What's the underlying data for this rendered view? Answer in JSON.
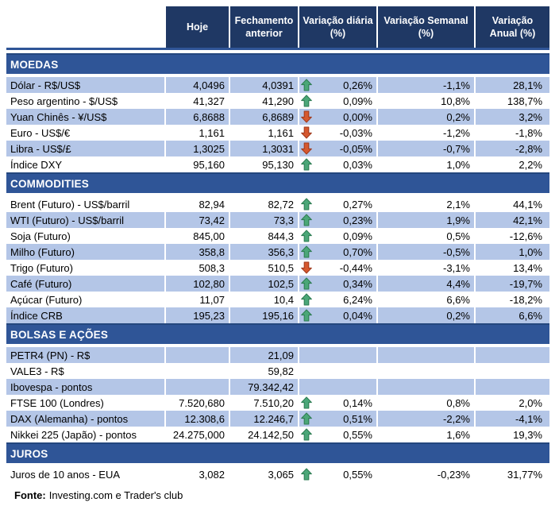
{
  "header": {
    "columns": [
      "Hoje",
      "Fechamento\nanterior",
      "Variação diária\n(%)",
      "Variação Semanal\n(%)",
      "Variação\nAnual (%)"
    ]
  },
  "sections": [
    {
      "title": "MOEDAS",
      "first_row_shaded": true,
      "rows": [
        {
          "label": "Dólar - R$/US$",
          "today": "4,0496",
          "previous_close": "4,0391",
          "direction": "up",
          "daily_change": "0,26%",
          "weekly_change": "-1,1%",
          "annual_change": "28,1%"
        },
        {
          "label": "Peso argentino - $/US$",
          "today": "41,327",
          "previous_close": "41,290",
          "direction": "up",
          "daily_change": "0,09%",
          "weekly_change": "10,8%",
          "annual_change": "138,7%"
        },
        {
          "label": "Yuan Chinês - ¥/US$",
          "today": "6,8688",
          "previous_close": "6,8689",
          "direction": "down",
          "daily_change": "0,00%",
          "weekly_change": "0,2%",
          "annual_change": "3,2%"
        },
        {
          "label": "Euro - US$/€",
          "today": "1,161",
          "previous_close": "1,161",
          "direction": "down",
          "daily_change": "-0,03%",
          "weekly_change": "-1,2%",
          "annual_change": "-1,8%"
        },
        {
          "label": "Libra - US$/£",
          "today": "1,3025",
          "previous_close": "1,3031",
          "direction": "down",
          "daily_change": "-0,05%",
          "weekly_change": "-0,7%",
          "annual_change": "-2,8%"
        },
        {
          "label": "Índice DXY",
          "today": "95,160",
          "previous_close": "95,130",
          "direction": "up",
          "daily_change": "0,03%",
          "weekly_change": "1,0%",
          "annual_change": "2,2%"
        }
      ]
    },
    {
      "title": "COMMODITIES",
      "first_row_shaded": false,
      "rows": [
        {
          "label": "Brent (Futuro) - US$/barril",
          "today": "82,94",
          "previous_close": "82,72",
          "direction": "up",
          "daily_change": "0,27%",
          "weekly_change": "2,1%",
          "annual_change": "44,1%"
        },
        {
          "label": "WTI (Futuro) - US$/barril",
          "today": "73,42",
          "previous_close": "73,3",
          "direction": "up",
          "daily_change": "0,23%",
          "weekly_change": "1,9%",
          "annual_change": "42,1%"
        },
        {
          "label": "Soja (Futuro)",
          "today": "845,00",
          "previous_close": "844,3",
          "direction": "up",
          "daily_change": "0,09%",
          "weekly_change": "0,5%",
          "annual_change": "-12,6%"
        },
        {
          "label": "Milho (Futuro)",
          "today": "358,8",
          "previous_close": "356,3",
          "direction": "up",
          "daily_change": "0,70%",
          "weekly_change": "-0,5%",
          "annual_change": "1,0%"
        },
        {
          "label": "Trigo (Futuro)",
          "today": "508,3",
          "previous_close": "510,5",
          "direction": "down",
          "daily_change": "-0,44%",
          "weekly_change": "-3,1%",
          "annual_change": "13,4%"
        },
        {
          "label": "Café (Futuro)",
          "today": "102,80",
          "previous_close": "102,5",
          "direction": "up",
          "daily_change": "0,34%",
          "weekly_change": "4,4%",
          "annual_change": "-19,7%"
        },
        {
          "label": "Açúcar (Futuro)",
          "today": "11,07",
          "previous_close": "10,4",
          "direction": "up",
          "daily_change": "6,24%",
          "weekly_change": "6,6%",
          "annual_change": "-18,2%"
        },
        {
          "label": "Índice CRB",
          "today": "195,23",
          "previous_close": "195,16",
          "direction": "up",
          "daily_change": "0,04%",
          "weekly_change": "0,2%",
          "annual_change": "6,6%"
        }
      ]
    },
    {
      "title": "BOLSAS E AÇÕES",
      "first_row_shaded": true,
      "rows": [
        {
          "label": "PETR4 (PN) - R$",
          "today": "",
          "previous_close": "21,09",
          "direction": "",
          "daily_change": "",
          "weekly_change": "",
          "annual_change": ""
        },
        {
          "label": "VALE3 - R$",
          "today": "",
          "previous_close": "59,82",
          "direction": "",
          "daily_change": "",
          "weekly_change": "",
          "annual_change": ""
        },
        {
          "label": "Ibovespa - pontos",
          "today": "",
          "previous_close": "79.342,42",
          "direction": "",
          "daily_change": "",
          "weekly_change": "",
          "annual_change": ""
        },
        {
          "label": "FTSE 100 (Londres)",
          "today": "7.520,680",
          "previous_close": "7.510,20",
          "direction": "up",
          "daily_change": "0,14%",
          "weekly_change": "0,8%",
          "annual_change": "2,0%"
        },
        {
          "label": "DAX (Alemanha) - pontos",
          "today": "12.308,6",
          "previous_close": "12.246,7",
          "direction": "up",
          "daily_change": "0,51%",
          "weekly_change": "-2,2%",
          "annual_change": "-4,1%"
        },
        {
          "label": "Nikkei 225 (Japão) - pontos",
          "today": "24.275,000",
          "previous_close": "24.142,50",
          "direction": "up",
          "daily_change": "0,55%",
          "weekly_change": "1,6%",
          "annual_change": "19,3%"
        }
      ]
    },
    {
      "title": "JUROS",
      "first_row_shaded": false,
      "rows": [
        {
          "label": "Juros de 10 anos - EUA",
          "today": "3,082",
          "previous_close": "3,065",
          "direction": "up",
          "daily_change": "0,55%",
          "weekly_change": "-0,23%",
          "annual_change": "31,77%"
        }
      ]
    }
  ],
  "footer": {
    "source_label": "Fonte:",
    "source_text": "Investing.com e Trader's club"
  },
  "icons": {
    "up": "up-arrow-icon",
    "down": "down-arrow-icon"
  },
  "colors": {
    "header_bg": "#1F3864",
    "section_bg": "#2F5597",
    "section_border": "#24477E",
    "row_shaded": "#B4C6E7",
    "row_plain": "#FFFFFF",
    "up_arrow_fill": "#4BA778",
    "up_arrow_border": "#2E7D53",
    "down_arrow_fill": "#D6582E",
    "down_arrow_border": "#A03B1E",
    "header_text": "#FFFFFF",
    "body_text": "#000000"
  }
}
